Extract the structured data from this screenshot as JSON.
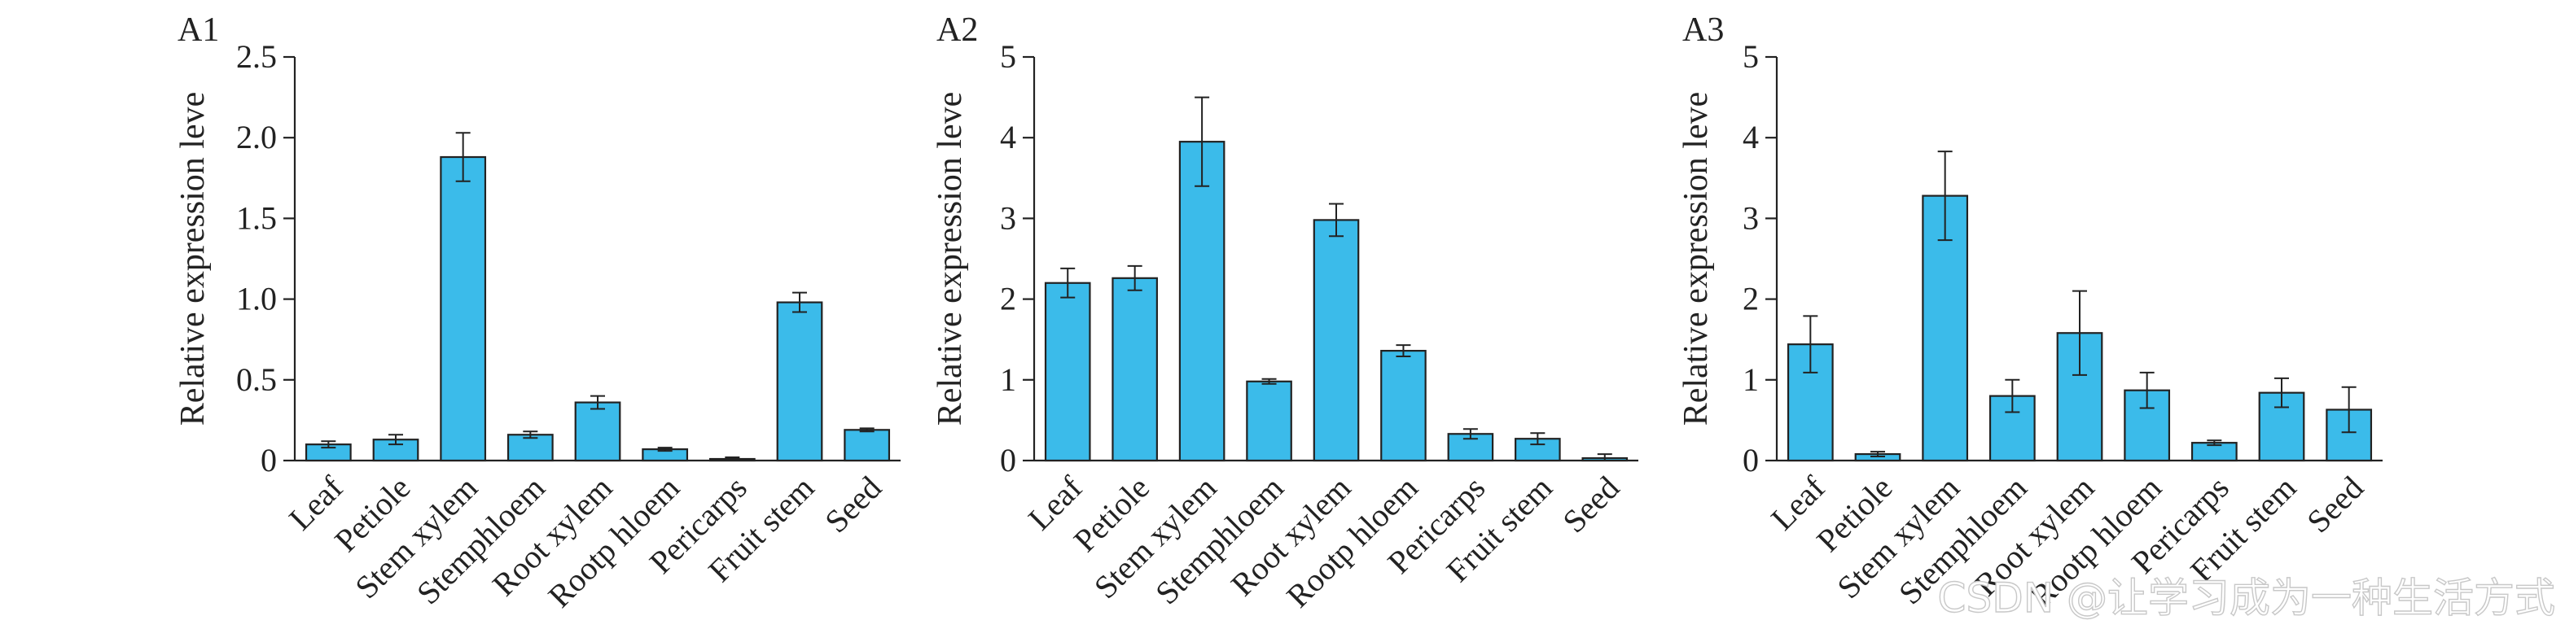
{
  "bar_color": "#3bbbea",
  "watermark": "CSDN @让学习成为一种生活方式",
  "chart_data": [
    {
      "type": "bar",
      "title": "A1",
      "ylabel": "Relative expression leve",
      "ylim": [
        0,
        2.5
      ],
      "yticks": [
        "0",
        "0.5",
        "1.0",
        "1.5",
        "2.0",
        "2.5"
      ],
      "categories": [
        "Leaf",
        "Petiole",
        "Stem xylem",
        "Stemphloem",
        "Root xylem",
        "Rootp hloem",
        "Pericarps",
        "Fruit stem",
        "Seed"
      ],
      "values": [
        0.1,
        0.13,
        1.88,
        0.16,
        0.36,
        0.07,
        0.01,
        0.98,
        0.19
      ],
      "errors": [
        0.02,
        0.03,
        0.15,
        0.02,
        0.04,
        0.01,
        0.01,
        0.06,
        0.01
      ]
    },
    {
      "type": "bar",
      "title": "A2",
      "ylabel": "Relative expression leve",
      "ylim": [
        0,
        5
      ],
      "yticks": [
        "0",
        "1",
        "2",
        "3",
        "4",
        "5"
      ],
      "categories": [
        "Leaf",
        "Petiole",
        "Stem xylem",
        "Stemphloem",
        "Root xylem",
        "Rootp hloem",
        "Pericarps",
        "Fruit stem",
        "Seed"
      ],
      "values": [
        2.2,
        2.26,
        3.95,
        0.98,
        2.98,
        1.36,
        0.33,
        0.27,
        0.03
      ],
      "errors": [
        0.18,
        0.15,
        0.55,
        0.03,
        0.2,
        0.07,
        0.06,
        0.07,
        0.05
      ]
    },
    {
      "type": "bar",
      "title": "A3",
      "ylabel": "Relative expression leve",
      "ylim": [
        0,
        5
      ],
      "yticks": [
        "0",
        "1",
        "2",
        "3",
        "4",
        "5"
      ],
      "categories": [
        "Leaf",
        "Petiole",
        "Stem xylem",
        "Stemphloem",
        "Root xylem",
        "Rootp hloem",
        "Pericarps",
        "Fruit stem",
        "Seed"
      ],
      "values": [
        1.44,
        0.08,
        3.28,
        0.8,
        1.58,
        0.87,
        0.22,
        0.84,
        0.63
      ],
      "errors": [
        0.35,
        0.03,
        0.55,
        0.2,
        0.52,
        0.22,
        0.03,
        0.18,
        0.28
      ]
    }
  ]
}
